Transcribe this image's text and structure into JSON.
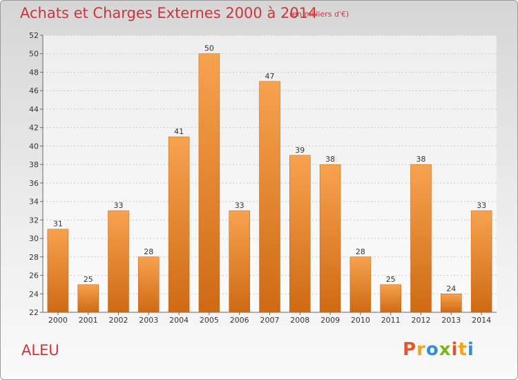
{
  "header": {
    "title": "Achats et Charges Externes 2000 à 2014",
    "subtitle": "(en milliers d'€)"
  },
  "footer": {
    "commune": "ALEU",
    "logo": {
      "letters": [
        "P",
        "r",
        "o",
        "x",
        "i",
        "t",
        "i"
      ]
    }
  },
  "colors": {
    "title": "#d1323a",
    "bar_light": "#f7a24f",
    "bar_dark": "#cf6a14",
    "logo": [
      "#e4572e",
      "#f2a516",
      "#2f8fd6",
      "#7cb518",
      "#e4572e",
      "#f2a516",
      "#2f8fd6"
    ]
  },
  "chart_data": {
    "type": "bar",
    "title": "Achats et Charges Externes 2000 à 2014",
    "subtitle": "(en milliers d'€)",
    "categories": [
      "2000",
      "2001",
      "2002",
      "2003",
      "2004",
      "2005",
      "2006",
      "2007",
      "2008",
      "2009",
      "2010",
      "2011",
      "2012",
      "2013",
      "2014"
    ],
    "values": [
      31,
      25,
      33,
      28,
      41,
      50,
      33,
      47,
      39,
      38,
      28,
      25,
      38,
      24,
      33
    ],
    "ylim": [
      22,
      52
    ],
    "yticks": [
      22,
      24,
      26,
      28,
      30,
      32,
      34,
      36,
      38,
      40,
      42,
      44,
      46,
      48,
      50,
      52
    ],
    "xlabel": "",
    "ylabel": "",
    "grid": true,
    "data_labels": true
  }
}
